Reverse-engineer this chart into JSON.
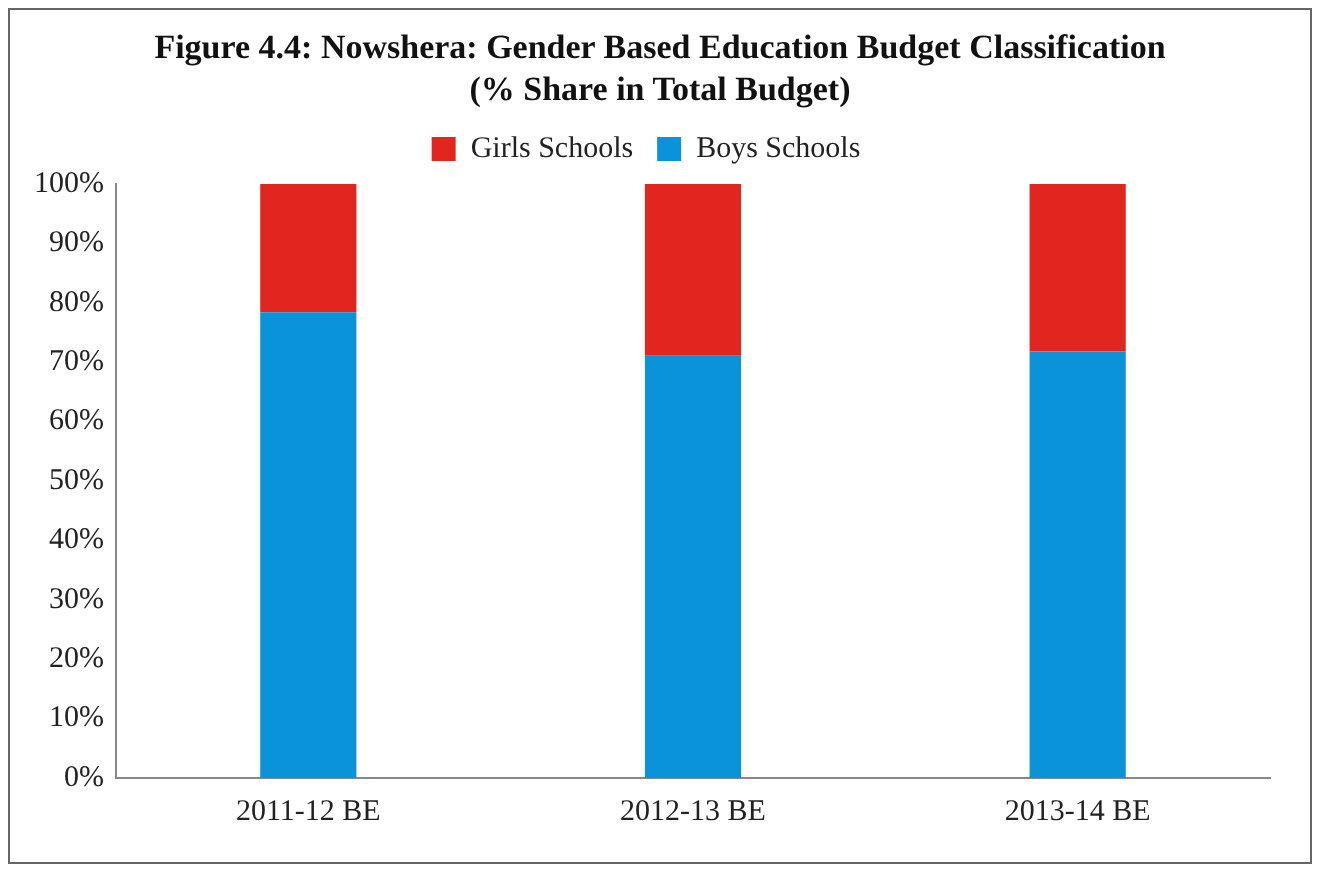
{
  "chart_data": {
    "type": "bar",
    "title": "Figure 4.4: Nowshera: Gender Based Education Budget Classification (% Share in Total Budget)",
    "categories": [
      "2011-12 BE",
      "2012-13 BE",
      "2013-14 BE"
    ],
    "series": [
      {
        "name": "Boys Schools",
        "color": "#0a93d8",
        "values": [
          78.4,
          71.1,
          71.8
        ]
      },
      {
        "name": "Girls Schools",
        "color": "#e0261f",
        "values": [
          21.6,
          28.9,
          28.2
        ]
      }
    ],
    "stacked": true,
    "ylim": [
      0,
      100
    ],
    "yticks": [
      {
        "value": 0,
        "label": "0%"
      },
      {
        "value": 10,
        "label": "10%"
      },
      {
        "value": 20,
        "label": "20%"
      },
      {
        "value": 30,
        "label": "30%"
      },
      {
        "value": 40,
        "label": "40%"
      },
      {
        "value": 50,
        "label": "50%"
      },
      {
        "value": 60,
        "label": "60%"
      },
      {
        "value": 70,
        "label": "70%"
      },
      {
        "value": 80,
        "label": "80%"
      },
      {
        "value": 90,
        "label": "90%"
      },
      {
        "value": 100,
        "label": "100%"
      }
    ],
    "grid": false,
    "legend": "top"
  }
}
